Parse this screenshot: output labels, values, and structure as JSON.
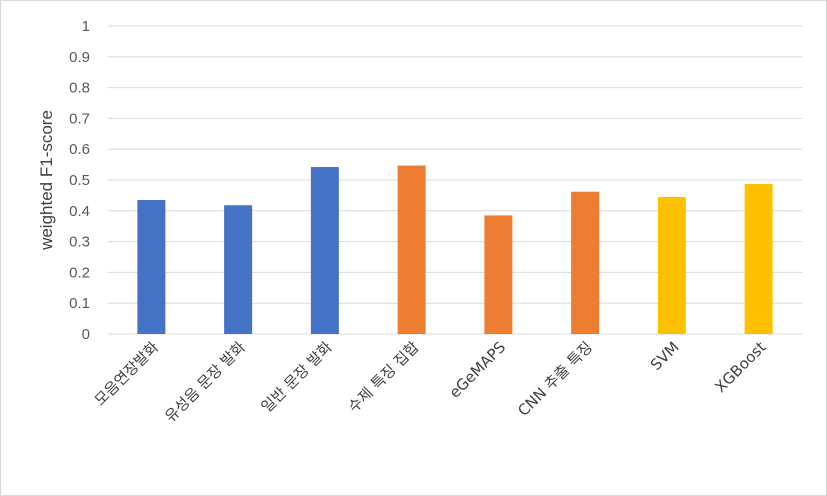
{
  "chart_data": {
    "type": "bar",
    "title": "",
    "xlabel": "",
    "ylabel": "weighted F1-score",
    "ylim": [
      0,
      1
    ],
    "yticks": [
      0,
      0.1,
      0.2,
      0.3,
      0.4,
      0.5,
      0.6,
      0.7,
      0.8,
      0.9,
      1
    ],
    "ytick_labels": [
      "0",
      "0.1",
      "0.2",
      "0.3",
      "0.4",
      "0.5",
      "0.6",
      "0.7",
      "0.8",
      "0.9",
      "1"
    ],
    "grid": true,
    "legend": "none",
    "categories": [
      "모음연장발화",
      "유성음 문장 발화",
      "일반 문장 발화",
      "수제 특징 집합",
      "eGeMAPS",
      "CNN 추출 특징",
      "SVM",
      "XGBoost"
    ],
    "values": [
      0.435,
      0.418,
      0.542,
      0.547,
      0.385,
      0.462,
      0.445,
      0.487
    ],
    "colors": [
      "#4472c4",
      "#4472c4",
      "#4472c4",
      "#ed7d31",
      "#ed7d31",
      "#ed7d31",
      "#ffc000",
      "#ffc000"
    ]
  }
}
